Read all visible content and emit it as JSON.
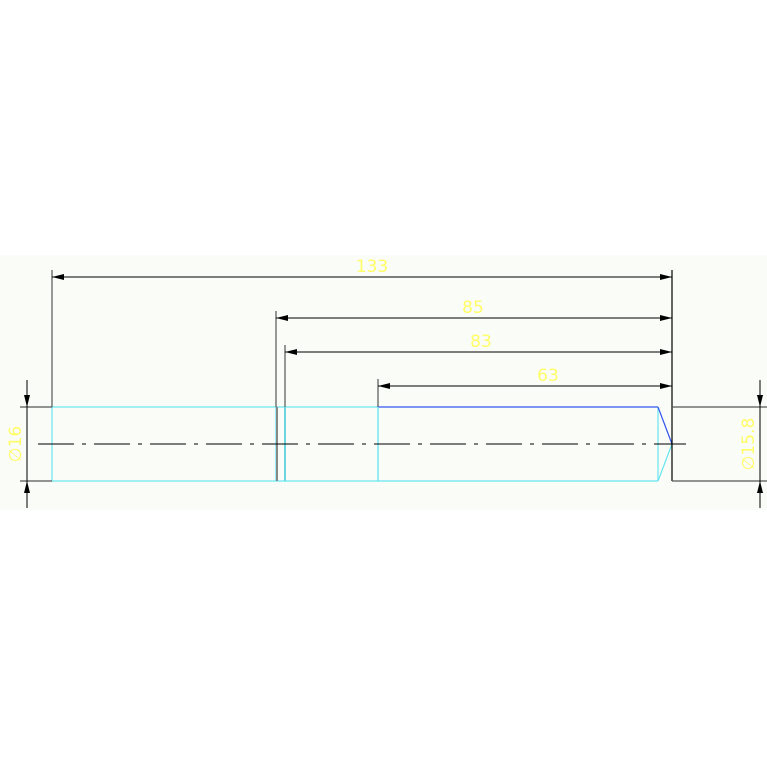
{
  "drawing": {
    "dimensions": {
      "overall": "133",
      "d85": "85",
      "d83": "83",
      "d63": "63",
      "left_diameter": "∅16",
      "right_diameter": "∅15.8"
    },
    "colors": {
      "background": "#fafcf8",
      "dimension_text": "#ffff66",
      "dimension_line": "#000000",
      "outline_cyan": "#66e6f0",
      "outline_blue": "#3355ee",
      "centerline": "#000000"
    }
  }
}
